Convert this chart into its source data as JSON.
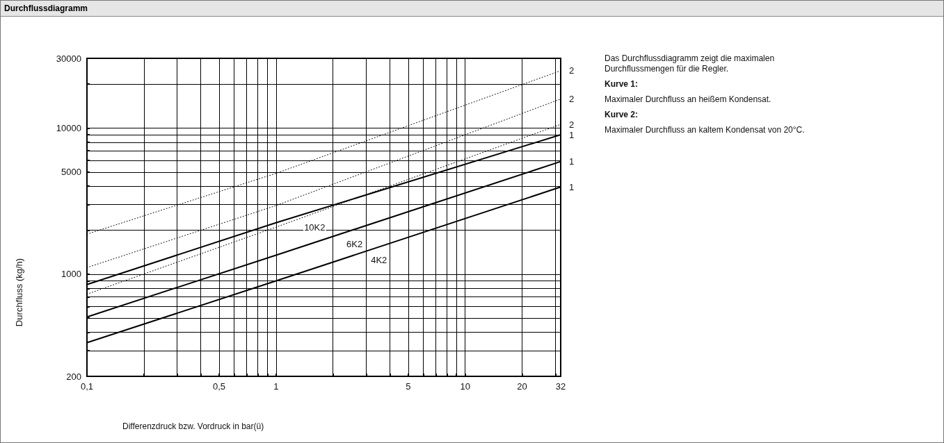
{
  "chart_data": {
    "type": "line",
    "title": "Durchflussdiagramm",
    "xlabel": "Differenzdruck bzw. Vordruck in bar(ü)",
    "ylabel": "Durchfluss (kg/h)",
    "log": "xy",
    "grid": true,
    "marker": "none",
    "xlim": [
      0.1,
      32
    ],
    "ylim": [
      200,
      30000
    ],
    "xticks": [
      {
        "value": 0.1,
        "label": "0,1"
      },
      {
        "value": 0.2,
        "label": null
      },
      {
        "value": 0.3,
        "label": null
      },
      {
        "value": 0.4,
        "label": null
      },
      {
        "value": 0.5,
        "label": "0,5"
      },
      {
        "value": 0.6,
        "label": null
      },
      {
        "value": 0.7,
        "label": null
      },
      {
        "value": 0.8,
        "label": null
      },
      {
        "value": 0.9,
        "label": null
      },
      1,
      {
        "value": 2,
        "label": null
      },
      {
        "value": 3,
        "label": null
      },
      {
        "value": 4,
        "label": null
      },
      5,
      {
        "value": 6,
        "label": null
      },
      {
        "value": 7,
        "label": null
      },
      {
        "value": 8,
        "label": null
      },
      {
        "value": 9,
        "label": null
      },
      10,
      20,
      {
        "value": 30,
        "label": null
      },
      32
    ],
    "yticks": [
      200,
      {
        "value": 300,
        "label": null
      },
      {
        "value": 400,
        "label": null
      },
      {
        "value": 500,
        "label": null
      },
      {
        "value": 600,
        "label": null
      },
      {
        "value": 700,
        "label": null
      },
      {
        "value": 800,
        "label": null
      },
      {
        "value": 900,
        "label": null
      },
      1000,
      {
        "value": 2000,
        "label": null
      },
      {
        "value": 3000,
        "label": null
      },
      {
        "value": 4000,
        "label": null
      },
      5000,
      {
        "value": 6000,
        "label": null
      },
      {
        "value": 7000,
        "label": null
      },
      {
        "value": 8000,
        "label": null
      },
      {
        "value": 9000,
        "label": null
      },
      10000,
      {
        "value": 20000,
        "label": null
      },
      30000
    ],
    "x": [
      0.1,
      1,
      32
    ],
    "series": [
      {
        "color": "#000000",
        "line_style": "solid",
        "values": [
          850,
          2250,
          9000
        ]
      },
      {
        "color": "#000000",
        "line_style": "solid",
        "values": [
          510,
          1350,
          5900
        ]
      },
      {
        "color": "#000000",
        "line_style": "solid",
        "values": [
          340,
          900,
          3950
        ]
      },
      {
        "color": "#000000",
        "line_style": "dotted",
        "values": [
          1880,
          4900,
          24700
        ]
      },
      {
        "color": "#000000",
        "line_style": "dotted",
        "values": [
          1110,
          2950,
          15800
        ]
      },
      {
        "color": "#000000",
        "line_style": "dotted",
        "values": [
          730,
          2100,
          10600
        ]
      }
    ],
    "annotations": [
      {
        "text": "10K2",
        "x": 1.6,
        "y": 2100
      },
      {
        "text": "6K2",
        "x": 2.6,
        "y": 1600
      },
      {
        "text": "4K2",
        "x": 3.5,
        "y": 1250
      },
      {
        "text": "1",
        "x": 32,
        "y": 9000
      },
      {
        "text": "1",
        "x": 32,
        "y": 5900
      },
      {
        "text": "1",
        "x": 32,
        "y": 3950
      },
      {
        "text": "2",
        "x": 32,
        "y": 24700
      },
      {
        "text": "2",
        "x": 32,
        "y": 15800
      },
      {
        "text": "2",
        "x": 32,
        "y": 10600
      },
      "Das Durchflussdiagramm zeigt die maximalen Durchflussmengen für die Regler.",
      "Kurve 1:",
      "Maximaler Durchfluss an heißem Kondensat.",
      "Kurve 2:",
      "Maximaler Durchfluss an kaltem Kondensat von 20°C."
    ]
  }
}
